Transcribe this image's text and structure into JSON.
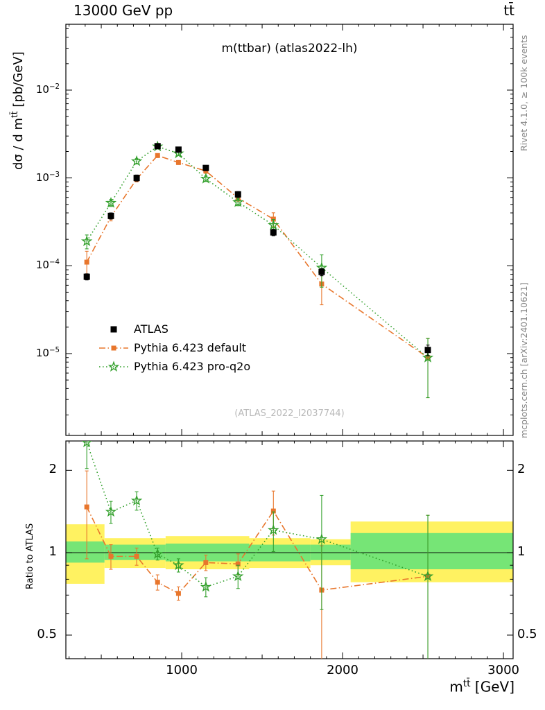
{
  "header": {
    "beam": "13000 GeV pp",
    "process": "tt̄"
  },
  "panel_title": "m(ttbar) (atlas2022-lh)",
  "watermark": "(ATLAS_2022_I2037744)",
  "side_notes": {
    "rivet": "Rivet 4.1.0, ≥ 100k events",
    "mcplots": "mcplots.cern.ch [arXiv:2401.10621]"
  },
  "axes": {
    "y_main": {
      "pre": "dσ / d m",
      "sup": "tt̄",
      "post": " [pb/GeV]"
    },
    "x": {
      "pre": "m",
      "sup": "tt̄",
      "post": " [GeV]"
    },
    "ratio_label": "Ratio to ATLAS"
  },
  "chart_data": {
    "type": "line",
    "title": "m(ttbar) (atlas2022-lh)",
    "xlabel": "m^tt [GeV]",
    "ylabel": "dσ / d m^tt [pb/GeV]",
    "xlim": [
      280,
      3060
    ],
    "xticks": [
      1000,
      2000,
      3000
    ],
    "x_minor_step": 100,
    "x_medium_step": 500,
    "main_panel": {
      "yscale": "log",
      "ylim": [
        1.17e-06,
        0.0562
      ],
      "ytick_exponents": [
        -2,
        -3,
        -4,
        -5
      ]
    },
    "x": [
      410,
      560,
      720,
      850,
      980,
      1150,
      1350,
      1570,
      1870,
      2530
    ],
    "series": [
      {
        "name": "ATLAS",
        "color": "#000000",
        "marker": "square",
        "marker_size": 9,
        "line": "none",
        "values": [
          7.5e-05,
          0.00037,
          0.001,
          0.0023,
          0.0021,
          0.0013,
          0.00065,
          0.00024,
          8.5e-05,
          1.1e-05
        ],
        "yerr": [
          6e-06,
          3e-05,
          8e-05,
          0.00015,
          0.00014,
          9e-05,
          5e-05,
          2e-05,
          8e-06,
          1.5e-06
        ]
      },
      {
        "name": "Pythia 6.423 default",
        "color": "#e8762c",
        "marker": "square",
        "marker_size": 7,
        "line": "dashdot",
        "values": [
          0.00011,
          0.00036,
          0.00097,
          0.0018,
          0.0015,
          0.0012,
          0.00059,
          0.00034,
          6.2e-05,
          9e-06
        ],
        "yerr_rel": [
          0.33,
          0.1,
          0.07,
          0.05,
          0.05,
          0.06,
          0.08,
          0.18,
          0.42,
          0.65
        ]
      },
      {
        "name": "Pythia 6.423 pro-q2o",
        "color": "#33a02c",
        "marker": "star",
        "marker_size": 13,
        "line": "dotted",
        "values": [
          0.00019,
          0.00052,
          0.00155,
          0.00228,
          0.0019,
          0.00098,
          0.00053,
          0.00029,
          9.5e-05,
          9e-06
        ],
        "yerr_rel": [
          0.18,
          0.09,
          0.07,
          0.05,
          0.05,
          0.07,
          0.09,
          0.16,
          0.4,
          0.65
        ]
      }
    ],
    "ratio_panel": {
      "yscale": "log",
      "ylim": [
        0.41,
        2.56
      ],
      "yticks": [
        2,
        1,
        0.5
      ],
      "ytick_labels": [
        "2",
        "1",
        "0.5"
      ],
      "minor_ticks": [
        0.6,
        0.7,
        0.8,
        0.9
      ],
      "reference_line": 1,
      "bands": {
        "outer_color": "#fff261",
        "inner_color": "#76e576",
        "segments": [
          {
            "x0": 280,
            "x1": 520,
            "outer": [
              0.77,
              1.27
            ],
            "inner": [
              0.92,
              1.1
            ]
          },
          {
            "x0": 520,
            "x1": 900,
            "outer": [
              0.88,
              1.13
            ],
            "inner": [
              0.94,
              1.07
            ]
          },
          {
            "x0": 900,
            "x1": 1420,
            "outer": [
              0.87,
              1.15
            ],
            "inner": [
              0.93,
              1.08
            ]
          },
          {
            "x0": 1420,
            "x1": 1800,
            "outer": [
              0.88,
              1.13
            ],
            "inner": [
              0.93,
              1.07
            ]
          },
          {
            "x0": 1800,
            "x1": 2050,
            "outer": [
              0.9,
              1.12
            ],
            "inner": [
              0.94,
              1.07
            ]
          },
          {
            "x0": 2050,
            "x1": 3060,
            "outer": [
              0.78,
              1.3
            ],
            "inner": [
              0.87,
              1.18
            ]
          }
        ]
      },
      "series": [
        {
          "name": "Pythia 6.423 default",
          "values": [
            1.47,
            0.97,
            0.97,
            0.78,
            0.71,
            0.92,
            0.91,
            1.42,
            0.73,
            0.82
          ],
          "yerr": [
            0.52,
            0.1,
            0.07,
            0.05,
            0.04,
            0.06,
            0.08,
            0.26,
            0.33,
            0.55
          ]
        },
        {
          "name": "Pythia 6.423 pro-q2o",
          "values": [
            2.53,
            1.41,
            1.55,
            0.99,
            0.9,
            0.75,
            0.82,
            1.21,
            1.12,
            0.82
          ],
          "yerr": [
            0.5,
            0.13,
            0.12,
            0.05,
            0.05,
            0.06,
            0.08,
            0.2,
            0.5,
            0.55
          ]
        }
      ]
    }
  }
}
